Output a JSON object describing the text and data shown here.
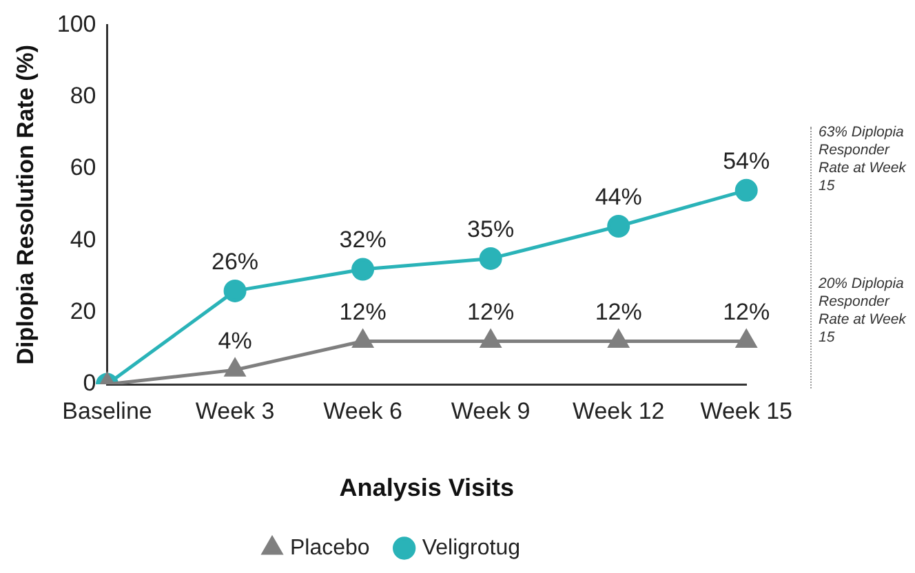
{
  "chart_data": {
    "type": "line",
    "xlabel": "Analysis Visits",
    "ylabel": "Diplopia Resolution Rate (%)",
    "categories": [
      "Baseline",
      "Week 3",
      "Week 6",
      "Week 9",
      "Week 12",
      "Week 15"
    ],
    "series": [
      {
        "name": "Placebo",
        "color": "#7f7f7f",
        "marker": "triangle",
        "values": [
          0,
          4,
          12,
          12,
          12,
          12
        ],
        "value_labels": [
          null,
          "4%",
          "12%",
          "12%",
          "12%",
          "12%"
        ]
      },
      {
        "name": "Veligrotug",
        "color": "#2ab3b8",
        "marker": "circle",
        "values": [
          0,
          26,
          32,
          35,
          44,
          54
        ],
        "value_labels": [
          null,
          "26%",
          "32%",
          "35%",
          "44%",
          "54%"
        ]
      }
    ],
    "ylim": [
      0,
      100
    ],
    "yticks": [
      0,
      20,
      40,
      60,
      80,
      100
    ],
    "grid": false,
    "legend": "bottom",
    "annotations": [
      "63% Diplopia Responder Rate at Week 15",
      "20% Diplopia Responder Rate at Week 15"
    ]
  }
}
